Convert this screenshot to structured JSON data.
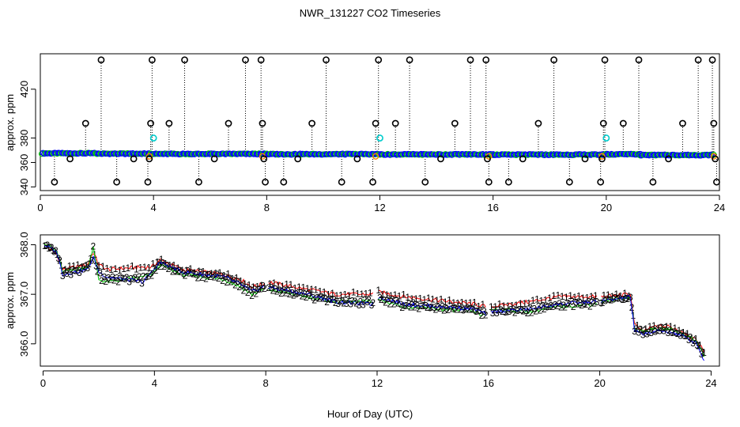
{
  "title": "NWR_131227  CO2 Timeseries",
  "xlabel": "Hour of Day (UTC)",
  "colors": {
    "series1": "#ff0000",
    "series2": "#00cc00",
    "series3": "#0000ff",
    "flagged_circle": "#000000",
    "flagged_cyan": "#00cccc",
    "orange": "#ff8000",
    "stem": "#000000"
  },
  "chart_data": [
    {
      "type": "scatter",
      "panel": "top",
      "ylabel": "approx. ppm",
      "xlim": [
        0,
        24
      ],
      "ylim": [
        337,
        449
      ],
      "xticks": [
        0,
        4,
        8,
        12,
        16,
        20,
        24
      ],
      "xtick_labels": [
        "0",
        "4",
        "8",
        "12",
        "16",
        "20",
        "24"
      ],
      "yticks": [
        340,
        360,
        380,
        420
      ],
      "ytick_labels": [
        "340",
        "360",
        "380",
        "420"
      ],
      "baseline_segments": [
        {
          "x0": 0.05,
          "x1": 2.0,
          "y": 367.5
        },
        {
          "x0": 2.0,
          "x1": 3.9,
          "y": 367.2
        },
        {
          "x0": 3.9,
          "x1": 8.0,
          "y": 367.0
        },
        {
          "x0": 8.0,
          "x1": 12.0,
          "y": 366.8
        },
        {
          "x0": 12.0,
          "x1": 16.0,
          "y": 366.6
        },
        {
          "x0": 16.0,
          "x1": 20.0,
          "y": 366.4
        },
        {
          "x0": 20.0,
          "x1": 21.2,
          "y": 366.7
        },
        {
          "x0": 21.2,
          "x1": 23.8,
          "y": 366.1
        }
      ],
      "flagged_points": [
        {
          "x": 0.5,
          "y": 344
        },
        {
          "x": 1.05,
          "y": 363
        },
        {
          "x": 1.6,
          "y": 392
        },
        {
          "x": 2.15,
          "y": 444
        },
        {
          "x": 2.7,
          "y": 344
        },
        {
          "x": 3.3,
          "y": 363
        },
        {
          "x": 3.8,
          "y": 344
        },
        {
          "x": 3.85,
          "y": 363
        },
        {
          "x": 3.9,
          "y": 392
        },
        {
          "x": 3.95,
          "y": 444
        },
        {
          "x": 4.55,
          "y": 392
        },
        {
          "x": 5.1,
          "y": 444
        },
        {
          "x": 5.6,
          "y": 344
        },
        {
          "x": 6.15,
          "y": 363
        },
        {
          "x": 6.65,
          "y": 392
        },
        {
          "x": 7.25,
          "y": 444
        },
        {
          "x": 7.8,
          "y": 444
        },
        {
          "x": 7.85,
          "y": 392
        },
        {
          "x": 7.9,
          "y": 363
        },
        {
          "x": 7.95,
          "y": 344
        },
        {
          "x": 8.6,
          "y": 344
        },
        {
          "x": 9.1,
          "y": 363
        },
        {
          "x": 9.6,
          "y": 392
        },
        {
          "x": 10.1,
          "y": 444
        },
        {
          "x": 10.65,
          "y": 344
        },
        {
          "x": 11.2,
          "y": 363
        },
        {
          "x": 11.75,
          "y": 344
        },
        {
          "x": 11.85,
          "y": 392
        },
        {
          "x": 11.95,
          "y": 444
        },
        {
          "x": 12.55,
          "y": 392
        },
        {
          "x": 13.05,
          "y": 444
        },
        {
          "x": 13.6,
          "y": 344
        },
        {
          "x": 14.15,
          "y": 363
        },
        {
          "x": 14.65,
          "y": 392
        },
        {
          "x": 15.2,
          "y": 444
        },
        {
          "x": 15.75,
          "y": 444
        },
        {
          "x": 15.8,
          "y": 363
        },
        {
          "x": 15.85,
          "y": 344
        },
        {
          "x": 16.55,
          "y": 344
        },
        {
          "x": 17.05,
          "y": 363
        },
        {
          "x": 17.6,
          "y": 392
        },
        {
          "x": 18.15,
          "y": 444
        },
        {
          "x": 18.7,
          "y": 344
        },
        {
          "x": 19.25,
          "y": 363
        },
        {
          "x": 19.8,
          "y": 344
        },
        {
          "x": 19.85,
          "y": 363
        },
        {
          "x": 19.9,
          "y": 392
        },
        {
          "x": 19.95,
          "y": 444
        },
        {
          "x": 20.6,
          "y": 392
        },
        {
          "x": 21.15,
          "y": 444
        },
        {
          "x": 21.65,
          "y": 344
        },
        {
          "x": 22.2,
          "y": 363
        },
        {
          "x": 22.7,
          "y": 392
        },
        {
          "x": 23.25,
          "y": 444
        },
        {
          "x": 23.75,
          "y": 444
        },
        {
          "x": 23.8,
          "y": 392
        },
        {
          "x": 23.85,
          "y": 363
        },
        {
          "x": 23.9,
          "y": 344
        }
      ],
      "cyan_points": [
        {
          "x": 4.0,
          "y": 380
        },
        {
          "x": 12.0,
          "y": 380
        },
        {
          "x": 20.0,
          "y": 380
        }
      ],
      "orange_points": [
        {
          "x": 3.85,
          "y": 365
        },
        {
          "x": 7.85,
          "y": 365
        },
        {
          "x": 11.85,
          "y": 365
        },
        {
          "x": 15.85,
          "y": 365
        },
        {
          "x": 19.85,
          "y": 365
        },
        {
          "x": 23.8,
          "y": 365
        }
      ]
    },
    {
      "type": "line",
      "panel": "bottom",
      "ylabel": "approx. ppm",
      "xlim": [
        -0.1,
        24.3
      ],
      "ylim": [
        365.55,
        368.2
      ],
      "xticks": [
        0,
        4,
        8,
        12,
        16,
        20,
        24
      ],
      "xtick_labels": [
        "0",
        "4",
        "8",
        "12",
        "16",
        "20",
        "24"
      ],
      "yticks": [
        366.0,
        367.0,
        368.0
      ],
      "ytick_labels": [
        "366.0",
        "367.0",
        "368.0"
      ],
      "series": [
        {
          "name": "1",
          "anchors": [
            [
              0.05,
              368.0
            ],
            [
              0.5,
              367.8
            ],
            [
              0.7,
              367.5
            ],
            [
              1.6,
              367.6
            ],
            [
              1.8,
              367.85
            ],
            [
              2.0,
              367.6
            ],
            [
              2.3,
              367.5
            ],
            [
              3.6,
              367.55
            ],
            [
              3.9,
              367.55
            ],
            [
              4.2,
              367.7
            ],
            [
              5.0,
              367.5
            ],
            [
              6.5,
              367.4
            ],
            [
              7.1,
              367.3
            ],
            [
              7.5,
              367.15
            ],
            [
              7.9,
              367.2
            ],
            [
              8.05,
              367.25
            ],
            [
              9.5,
              367.1
            ],
            [
              10.5,
              367.0
            ],
            [
              11.8,
              367.0
            ],
            [
              12.0,
              367.05
            ],
            [
              13.0,
              366.95
            ],
            [
              15.5,
              366.8
            ],
            [
              15.9,
              366.75
            ],
            [
              16.1,
              366.75
            ],
            [
              17.5,
              366.85
            ],
            [
              18.5,
              366.95
            ],
            [
              19.8,
              366.95
            ],
            [
              20.0,
              366.95
            ],
            [
              21.1,
              367.0
            ],
            [
              21.25,
              366.4
            ],
            [
              21.5,
              366.25
            ],
            [
              22.0,
              366.35
            ],
            [
              22.5,
              366.35
            ],
            [
              23.0,
              366.25
            ],
            [
              23.5,
              366.05
            ],
            [
              23.75,
              365.85
            ]
          ],
          "label_every": 3
        },
        {
          "name": "2",
          "anchors": [
            [
              0.05,
              368.05
            ],
            [
              0.5,
              367.85
            ],
            [
              0.7,
              367.45
            ],
            [
              1.6,
              367.55
            ],
            [
              1.8,
              367.95
            ],
            [
              2.0,
              367.3
            ],
            [
              2.3,
              367.25
            ],
            [
              3.6,
              367.35
            ],
            [
              3.9,
              367.4
            ],
            [
              4.2,
              367.6
            ],
            [
              5.0,
              367.4
            ],
            [
              6.5,
              367.3
            ],
            [
              7.1,
              367.15
            ],
            [
              7.5,
              367.0
            ],
            [
              7.9,
              367.1
            ],
            [
              8.05,
              367.1
            ],
            [
              9.5,
              366.95
            ],
            [
              10.5,
              366.85
            ],
            [
              11.8,
              366.85
            ],
            [
              12.0,
              366.9
            ],
            [
              13.0,
              366.75
            ],
            [
              15.5,
              366.65
            ],
            [
              15.9,
              366.55
            ],
            [
              16.1,
              366.7
            ],
            [
              17.5,
              366.65
            ],
            [
              18.5,
              366.75
            ],
            [
              19.8,
              366.8
            ],
            [
              20.0,
              366.85
            ],
            [
              21.1,
              366.95
            ],
            [
              21.25,
              366.3
            ],
            [
              21.5,
              366.25
            ],
            [
              22.0,
              366.3
            ],
            [
              22.5,
              366.3
            ],
            [
              23.0,
              366.2
            ],
            [
              23.5,
              366.05
            ],
            [
              23.75,
              365.75
            ]
          ],
          "label_every": 3
        },
        {
          "name": "3",
          "anchors": [
            [
              0.05,
              368.0
            ],
            [
              0.5,
              367.85
            ],
            [
              0.7,
              367.4
            ],
            [
              1.6,
              367.5
            ],
            [
              1.8,
              367.75
            ],
            [
              2.0,
              367.45
            ],
            [
              2.3,
              367.35
            ],
            [
              3.6,
              367.25
            ],
            [
              3.9,
              367.45
            ],
            [
              4.2,
              367.65
            ],
            [
              5.0,
              367.45
            ],
            [
              6.5,
              367.35
            ],
            [
              7.1,
              367.2
            ],
            [
              7.5,
              367.05
            ],
            [
              7.9,
              367.15
            ],
            [
              8.05,
              367.15
            ],
            [
              9.5,
              367.0
            ],
            [
              10.5,
              366.85
            ],
            [
              11.8,
              366.8
            ],
            [
              12.0,
              366.95
            ],
            [
              13.0,
              366.8
            ],
            [
              15.5,
              366.7
            ],
            [
              15.9,
              366.6
            ],
            [
              16.1,
              366.65
            ],
            [
              17.5,
              366.7
            ],
            [
              18.5,
              366.8
            ],
            [
              19.8,
              366.85
            ],
            [
              20.0,
              366.85
            ],
            [
              21.1,
              366.95
            ],
            [
              21.25,
              366.25
            ],
            [
              21.5,
              366.2
            ],
            [
              22.0,
              366.25
            ],
            [
              22.5,
              366.25
            ],
            [
              23.0,
              366.15
            ],
            [
              23.5,
              366.0
            ],
            [
              23.75,
              365.65
            ]
          ],
          "label_every": 3
        }
      ]
    }
  ]
}
